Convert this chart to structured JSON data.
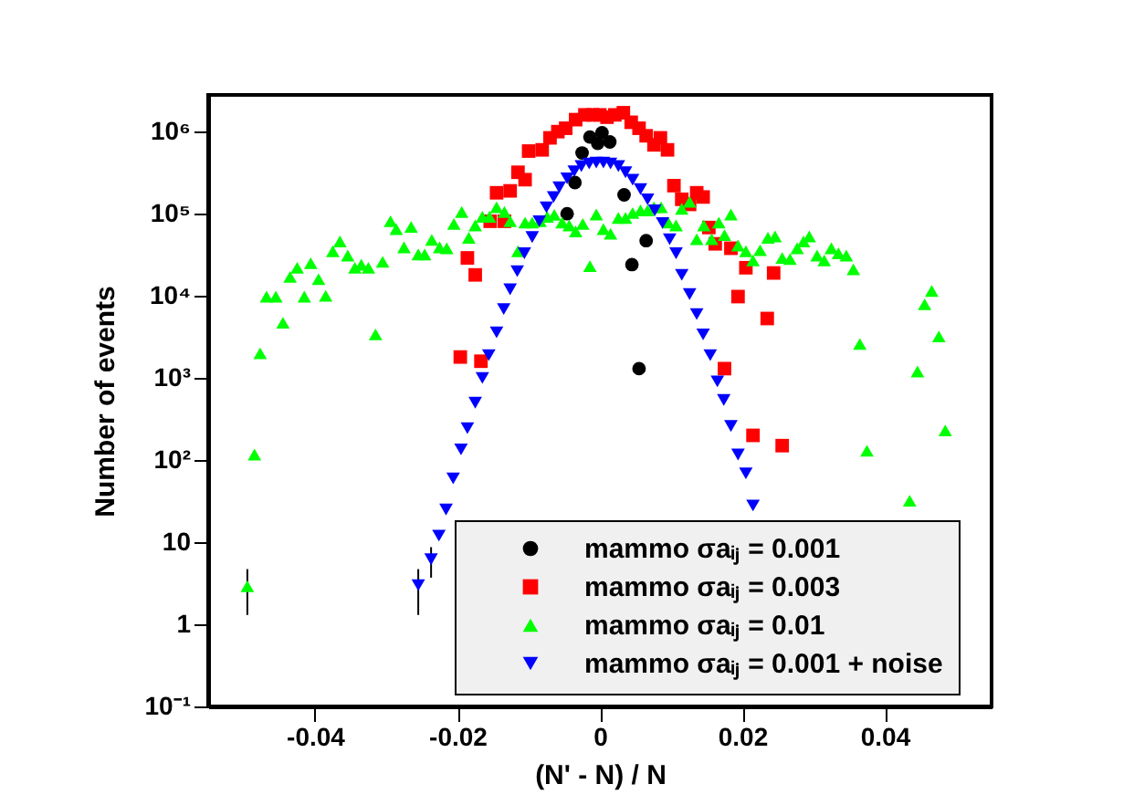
{
  "chart_data": {
    "type": "scatter",
    "xlabel": "(N' - N) / N",
    "ylabel": "Number of events",
    "log": "y",
    "grid": false,
    "legend": "bottom right",
    "xlim": [
      -0.055,
      0.055
    ],
    "xticks": [
      -0.04,
      -0.02,
      0,
      0.02,
      0.04
    ],
    "ylim": [
      0.1,
      2800000
    ],
    "yticks": [
      {
        "value": 0.1,
        "label": "10⁻¹"
      },
      1,
      10,
      {
        "value": 100,
        "label": "10²"
      },
      {
        "value": 1000,
        "label": "10³"
      },
      {
        "value": 10000,
        "label": "10⁴"
      },
      {
        "value": 100000,
        "label": "10⁵"
      },
      {
        "value": 1000000,
        "label": "10⁶"
      }
    ],
    "series": [
      {
        "name": "mammo σaᵢⱼ = 0.001",
        "color": "#000000",
        "marker": "circle",
        "x": [
          -0.0046,
          -0.0035,
          -0.0025,
          -0.0014,
          -0.0003,
          0.0003,
          0.0014,
          0.0034,
          0.0045,
          0.0055,
          0.0065
        ],
        "values": [
          100000,
          240000,
          550000,
          860000,
          720000,
          970000,
          750000,
          170000,
          24000,
          1300,
          47000
        ]
      },
      {
        "name": "mammo σaᵢⱼ = 0.003",
        "color": "#ff0000",
        "marker": "square",
        "x": [
          -0.0196,
          -0.0186,
          -0.0175,
          -0.0167,
          -0.0154,
          -0.0145,
          -0.0134,
          -0.0126,
          -0.0115,
          -0.0105,
          -0.01,
          -0.0081,
          -0.007,
          -0.0059,
          -0.0048,
          -0.0034,
          -0.0021,
          -0.001,
          0,
          0.001,
          0.0021,
          0.0033,
          0.0044,
          0.0055,
          0.0065,
          0.0076,
          0.0085,
          0.0095,
          0.0104,
          0.0115,
          0.0126,
          0.0136,
          0.0145,
          0.0153,
          0.0162,
          0.0175,
          0.0184,
          0.0194,
          0.0205,
          0.0215,
          0.0235,
          0.0244,
          0.0256
        ],
        "values": [
          1800,
          29000,
          18000,
          1600,
          81000,
          180000,
          81000,
          190000,
          320000,
          260000,
          580000,
          600000,
          840000,
          1000000,
          1100000,
          1400000,
          1600000,
          1600000,
          1600000,
          1500000,
          1600000,
          1700000,
          1300000,
          1100000,
          890000,
          690000,
          840000,
          600000,
          220000,
          150000,
          130000,
          180000,
          160000,
          68000,
          43000,
          1300,
          38000,
          9800,
          22000,
          200,
          5300,
          19000,
          150
        ]
      },
      {
        "name": "mammo σaᵢⱼ = 0.01",
        "color": "#00ff00",
        "marker": "triangle",
        "x": [
          -0.0495,
          -0.0485,
          -0.0477,
          -0.0468,
          -0.0455,
          -0.0445,
          -0.0435,
          -0.0425,
          -0.0415,
          -0.0406,
          -0.0395,
          -0.0385,
          -0.0375,
          -0.0365,
          -0.0354,
          -0.0344,
          -0.0335,
          -0.0325,
          -0.0315,
          -0.0305,
          -0.0294,
          -0.0286,
          -0.0275,
          -0.0265,
          -0.0255,
          -0.0246,
          -0.0236,
          -0.0225,
          -0.0215,
          -0.0205,
          -0.0194,
          -0.0184,
          -0.0175,
          -0.0165,
          -0.0155,
          -0.0145,
          -0.0134,
          -0.0126,
          -0.0115,
          -0.0105,
          -0.0095,
          -0.0084,
          -0.0074,
          -0.0064,
          -0.0053,
          -0.0043,
          -0.0034,
          -0.0024,
          -0.0014,
          -0.0005,
          0.0005,
          0.0015,
          0.0026,
          0.0036,
          0.0046,
          0.0057,
          0.0067,
          0.0076,
          0.0086,
          0.0096,
          0.0107,
          0.0115,
          0.0126,
          0.0136,
          0.0146,
          0.0157,
          0.0167,
          0.0175,
          0.0184,
          0.0194,
          0.0205,
          0.0215,
          0.0225,
          0.0236,
          0.0246,
          0.0256,
          0.0267,
          0.0277,
          0.0286,
          0.0294,
          0.0305,
          0.0315,
          0.0325,
          0.0335,
          0.0346,
          0.0356,
          0.0365,
          0.0375,
          0.0435,
          0.0446,
          0.0456,
          0.0466,
          0.0476,
          0.0485
        ],
        "values": [
          2.9,
          117,
          2000,
          9800,
          9800,
          4700,
          17000,
          22000,
          9800,
          25000,
          16000,
          10000,
          35000,
          46000,
          31000,
          22000,
          24000,
          22000,
          3400,
          26000,
          81000,
          65000,
          39000,
          69000,
          32000,
          32000,
          48000,
          39000,
          38000,
          75000,
          105000,
          51000,
          72000,
          92000,
          92000,
          120000,
          105000,
          81000,
          35000,
          78000,
          78000,
          81000,
          92000,
          97000,
          78000,
          72000,
          61000,
          75000,
          23000,
          98000,
          65000,
          57000,
          89000,
          89000,
          102000,
          110000,
          110000,
          120000,
          120000,
          78000,
          72000,
          115000,
          140000,
          49000,
          72000,
          49000,
          78000,
          55000,
          98000,
          41000,
          35000,
          27000,
          36000,
          51000,
          53000,
          29000,
          28000,
          38000,
          46000,
          53000,
          31000,
          27000,
          38000,
          33000,
          31000,
          21000,
          2600,
          130,
          32,
          1200,
          7900,
          11500,
          3200,
          230
        ],
        "errors": [
          [
            1.3,
            4.7
          ],
          null,
          null,
          null,
          null,
          null,
          null,
          null,
          null,
          null,
          null,
          null,
          null,
          null,
          null,
          null,
          null,
          null,
          null,
          null,
          null,
          null,
          null,
          null,
          null,
          null,
          null,
          null,
          null,
          null,
          null,
          null,
          null,
          null,
          null,
          null,
          null,
          null,
          null,
          null,
          null,
          null,
          null,
          null,
          null,
          null,
          null,
          null,
          null,
          null,
          null,
          null,
          null,
          null,
          null,
          null,
          null,
          null,
          null,
          null,
          null,
          null,
          null,
          null,
          null,
          null,
          null,
          null,
          null,
          null,
          null,
          null,
          null,
          null,
          null,
          null,
          null,
          null,
          null,
          null,
          null,
          null,
          null,
          null,
          null,
          null,
          null,
          null,
          null,
          null,
          null,
          null,
          null,
          null
        ]
      },
      {
        "name": "mammo σaᵢⱼ = 0.001 + noise",
        "color": "#0000ff",
        "marker": "triangle-down",
        "x": [
          -0.0255,
          -0.0237,
          -0.0226,
          -0.0216,
          -0.0206,
          -0.0195,
          -0.0186,
          -0.0175,
          -0.0165,
          -0.0156,
          -0.0145,
          -0.0135,
          -0.0126,
          -0.0116,
          -0.0106,
          -0.0095,
          -0.0085,
          -0.0075,
          -0.0065,
          -0.0057,
          -0.0046,
          -0.0036,
          -0.0026,
          -0.0015,
          -0.0005,
          0.0005,
          0.0015,
          0.0026,
          0.0036,
          0.0046,
          0.0057,
          0.0067,
          0.0077,
          0.0088,
          0.0098,
          0.0107,
          0.0115,
          0.0126,
          0.0136,
          0.0145,
          0.0155,
          0.0165,
          0.0174,
          0.0184,
          0.0194,
          0.0205,
          0.0215
        ],
        "values": [
          3.0,
          6.2,
          12,
          25,
          60,
          135,
          245,
          500,
          1000,
          1900,
          3600,
          6900,
          12000,
          20000,
          33000,
          52000,
          81000,
          120000,
          160000,
          210000,
          270000,
          330000,
          380000,
          410000,
          420000,
          420000,
          410000,
          380000,
          320000,
          260000,
          200000,
          150000,
          110000,
          77000,
          49000,
          33000,
          18000,
          10500,
          6000,
          3400,
          1900,
          910,
          540,
          260,
          117,
          69,
          28
        ],
        "errors": [
          [
            1.3,
            4.7
          ],
          [
            3.7,
            8.7
          ],
          null,
          null,
          null,
          null,
          null,
          null,
          null,
          null,
          null,
          null,
          null,
          null,
          null,
          null,
          null,
          null,
          null,
          null,
          null,
          null,
          null,
          null,
          null,
          null,
          null,
          null,
          null,
          null,
          null,
          null,
          null,
          null,
          null,
          null,
          null,
          null,
          null,
          null,
          null,
          null,
          null,
          null,
          null,
          null,
          null
        ]
      }
    ]
  }
}
